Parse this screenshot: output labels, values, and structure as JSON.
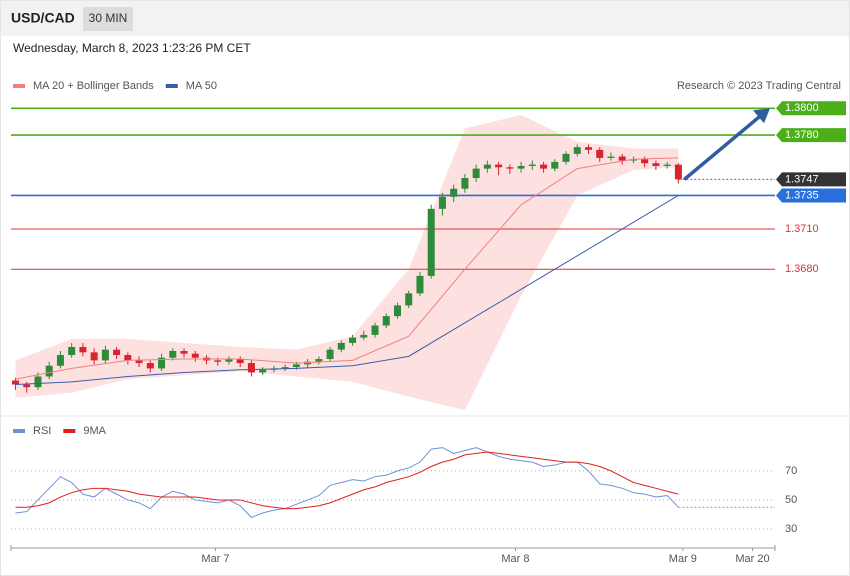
{
  "header": {
    "symbol": "USD/CAD",
    "interval": "30 MIN",
    "timestamp": "Wednesday, March 8, 2023 1:23:26 PM CET"
  },
  "chart_data": [
    {
      "type": "candlestick",
      "credit": "Research © 2023 Trading Central",
      "ylim": [
        1.3575,
        1.3836
      ],
      "xlim": [
        -0.4,
        67.6
      ],
      "xticks": [
        {
          "value": 17.8,
          "label": "Mar 7"
        },
        {
          "value": 44.5,
          "label": "Mar 8"
        },
        {
          "value": 59.4,
          "label": "Mar 9"
        },
        {
          "value": 65.6,
          "label": "Mar 20"
        }
      ],
      "up_color": "#2e8b3a",
      "down_color": "#d9232d",
      "candles": [
        [
          1.3597,
          1.3599,
          1.359,
          1.3594
        ],
        [
          1.3594,
          1.3596,
          1.3588,
          1.3592
        ],
        [
          1.3592,
          1.3603,
          1.359,
          1.36
        ],
        [
          1.36,
          1.3611,
          1.3598,
          1.3608
        ],
        [
          1.3608,
          1.3619,
          1.3606,
          1.3616
        ],
        [
          1.3616,
          1.3625,
          1.3614,
          1.3622
        ],
        [
          1.3622,
          1.3625,
          1.3615,
          1.3618
        ],
        [
          1.3618,
          1.3621,
          1.3609,
          1.3612
        ],
        [
          1.3612,
          1.3623,
          1.361,
          1.362
        ],
        [
          1.362,
          1.3622,
          1.3613,
          1.3616
        ],
        [
          1.3616,
          1.3618,
          1.3609,
          1.3612
        ],
        [
          1.3612,
          1.3615,
          1.3607,
          1.361
        ],
        [
          1.361,
          1.3612,
          1.3603,
          1.3606
        ],
        [
          1.3606,
          1.3617,
          1.3604,
          1.3614
        ],
        [
          1.3614,
          1.3621,
          1.3612,
          1.3619
        ],
        [
          1.3619,
          1.3621,
          1.3614,
          1.3617
        ],
        [
          1.3617,
          1.3619,
          1.3611,
          1.3614
        ],
        [
          1.3614,
          1.3616,
          1.3609,
          1.3612
        ],
        [
          1.3612,
          1.3614,
          1.3608,
          1.3611
        ],
        [
          1.3611,
          1.3615,
          1.3609,
          1.3613
        ],
        [
          1.3613,
          1.3615,
          1.3607,
          1.361
        ],
        [
          1.361,
          1.3612,
          1.36,
          1.3603
        ],
        [
          1.3603,
          1.3607,
          1.3601,
          1.3605
        ],
        [
          1.3605,
          1.3608,
          1.3603,
          1.3606
        ],
        [
          1.3606,
          1.3609,
          1.3604,
          1.3607
        ],
        [
          1.3607,
          1.3611,
          1.3605,
          1.3609
        ],
        [
          1.3609,
          1.3613,
          1.3606,
          1.3611
        ],
        [
          1.3611,
          1.3615,
          1.3609,
          1.3613
        ],
        [
          1.3613,
          1.3622,
          1.3611,
          1.362
        ],
        [
          1.362,
          1.3627,
          1.3618,
          1.3625
        ],
        [
          1.3625,
          1.3631,
          1.3623,
          1.3629
        ],
        [
          1.3629,
          1.3634,
          1.3627,
          1.3631
        ],
        [
          1.3631,
          1.364,
          1.3629,
          1.3638
        ],
        [
          1.3638,
          1.3647,
          1.3636,
          1.3645
        ],
        [
          1.3645,
          1.3655,
          1.3643,
          1.3653
        ],
        [
          1.3653,
          1.3664,
          1.3651,
          1.3662
        ],
        [
          1.3662,
          1.3678,
          1.366,
          1.3675
        ],
        [
          1.3675,
          1.3728,
          1.3673,
          1.3725
        ],
        [
          1.3725,
          1.3737,
          1.372,
          1.3734
        ],
        [
          1.3734,
          1.3743,
          1.373,
          1.374
        ],
        [
          1.374,
          1.3751,
          1.3737,
          1.3748
        ],
        [
          1.3748,
          1.3758,
          1.3745,
          1.3755
        ],
        [
          1.3755,
          1.3761,
          1.3752,
          1.3758
        ],
        [
          1.3758,
          1.376,
          1.375,
          1.3756
        ],
        [
          1.3756,
          1.3758,
          1.3751,
          1.3755
        ],
        [
          1.3755,
          1.376,
          1.3752,
          1.3757
        ],
        [
          1.3757,
          1.3761,
          1.3754,
          1.3758
        ],
        [
          1.3758,
          1.376,
          1.3752,
          1.3755
        ],
        [
          1.3755,
          1.3762,
          1.3753,
          1.376
        ],
        [
          1.376,
          1.3768,
          1.3758,
          1.3766
        ],
        [
          1.3766,
          1.3773,
          1.3764,
          1.3771
        ],
        [
          1.3771,
          1.3773,
          1.3766,
          1.3769
        ],
        [
          1.3769,
          1.3771,
          1.376,
          1.3763
        ],
        [
          1.3763,
          1.3767,
          1.3761,
          1.3764
        ],
        [
          1.3764,
          1.3766,
          1.3758,
          1.3761
        ],
        [
          1.3761,
          1.3764,
          1.3759,
          1.3762
        ],
        [
          1.3762,
          1.3764,
          1.3756,
          1.3759
        ],
        [
          1.3759,
          1.3761,
          1.3754,
          1.3757
        ],
        [
          1.3757,
          1.376,
          1.3755,
          1.3758
        ],
        [
          1.3758,
          1.3759,
          1.3744,
          1.3747
        ]
      ],
      "overlays": {
        "x": [
          0,
          5,
          10,
          15,
          20,
          25,
          30,
          35,
          40,
          45,
          50,
          55,
          59
        ],
        "series": [
          {
            "name": "MA 20 + Bollinger Bands",
            "color": "#f08080",
            "band_color": "#fde0e0",
            "values": [
              1.3598,
              1.3606,
              1.3612,
              1.3613,
              1.3613,
              1.361,
              1.3612,
              1.363,
              1.368,
              1.3728,
              1.3755,
              1.3762,
              1.3763
            ],
            "upper": [
              1.3612,
              1.3628,
              1.3628,
              1.3625,
              1.3622,
              1.362,
              1.363,
              1.368,
              1.3785,
              1.3795,
              1.3775,
              1.377,
              1.377
            ],
            "lower": [
              1.3584,
              1.3588,
              1.3598,
              1.3601,
              1.3604,
              1.36,
              1.3596,
              1.3585,
              1.3575,
              1.366,
              1.3735,
              1.3754,
              1.3756
            ]
          },
          {
            "name": "MA 50",
            "color": "#3c5ea8",
            "values": [
              1.3594,
              1.3596,
              1.36,
              1.3603,
              1.3605,
              1.3606,
              1.3608,
              1.3615,
              1.364,
              1.3665,
              1.369,
              1.3715,
              1.3735
            ]
          }
        ]
      },
      "levels": [
        {
          "value": 1.38,
          "label": "1.3800",
          "color": "#4caf1a",
          "tag": true,
          "dashed": false
        },
        {
          "value": 1.378,
          "label": "1.3780",
          "color": "#4caf1a",
          "tag": true,
          "dashed": false
        },
        {
          "value": 1.3747,
          "label": "1.3747",
          "color": "#333333",
          "tag": true,
          "dashed": true
        },
        {
          "value": 1.3735,
          "label": "1.3735",
          "color": "#2a6fdb",
          "tag": true,
          "dashed": false
        },
        {
          "value": 1.371,
          "label": "1.3710",
          "color": "#e03030",
          "tag": false,
          "dashed": false
        },
        {
          "value": 1.368,
          "label": "1.3680",
          "color": "#e03030",
          "tag": false,
          "dashed": false
        }
      ],
      "arrow_color": "#2f5d9e"
    },
    {
      "type": "line",
      "ylim": [
        19,
        105
      ],
      "yticks": [
        30,
        50,
        70
      ],
      "series": [
        {
          "name": "RSI",
          "color": "#6f8fd8",
          "values": [
            41,
            42,
            50,
            58,
            66,
            62,
            54,
            52,
            58,
            54,
            50,
            48,
            44,
            52,
            56,
            54,
            50,
            49,
            48,
            50,
            46,
            38,
            41,
            43,
            44,
            47,
            50,
            53,
            60,
            62,
            64,
            63,
            66,
            67,
            70,
            72,
            76,
            85,
            86,
            82,
            84,
            86,
            83,
            80,
            78,
            77,
            76,
            73,
            74,
            76,
            76,
            70,
            61,
            60,
            58,
            55,
            54,
            52,
            53,
            45
          ]
        },
        {
          "name": "9MA",
          "color": "#e0201b",
          "values": [
            45,
            45,
            46,
            48,
            52,
            55,
            57,
            58,
            58,
            57,
            56,
            54,
            53,
            52,
            52,
            52,
            52,
            51,
            50,
            50,
            50,
            48,
            46,
            45,
            44,
            44,
            45,
            46,
            48,
            51,
            54,
            57,
            59,
            62,
            64,
            66,
            69,
            73,
            76,
            78,
            81,
            82,
            83,
            82,
            81,
            80,
            79,
            78,
            77,
            76,
            76,
            75,
            73,
            70,
            66,
            62,
            60,
            58,
            56,
            54
          ]
        }
      ]
    }
  ]
}
